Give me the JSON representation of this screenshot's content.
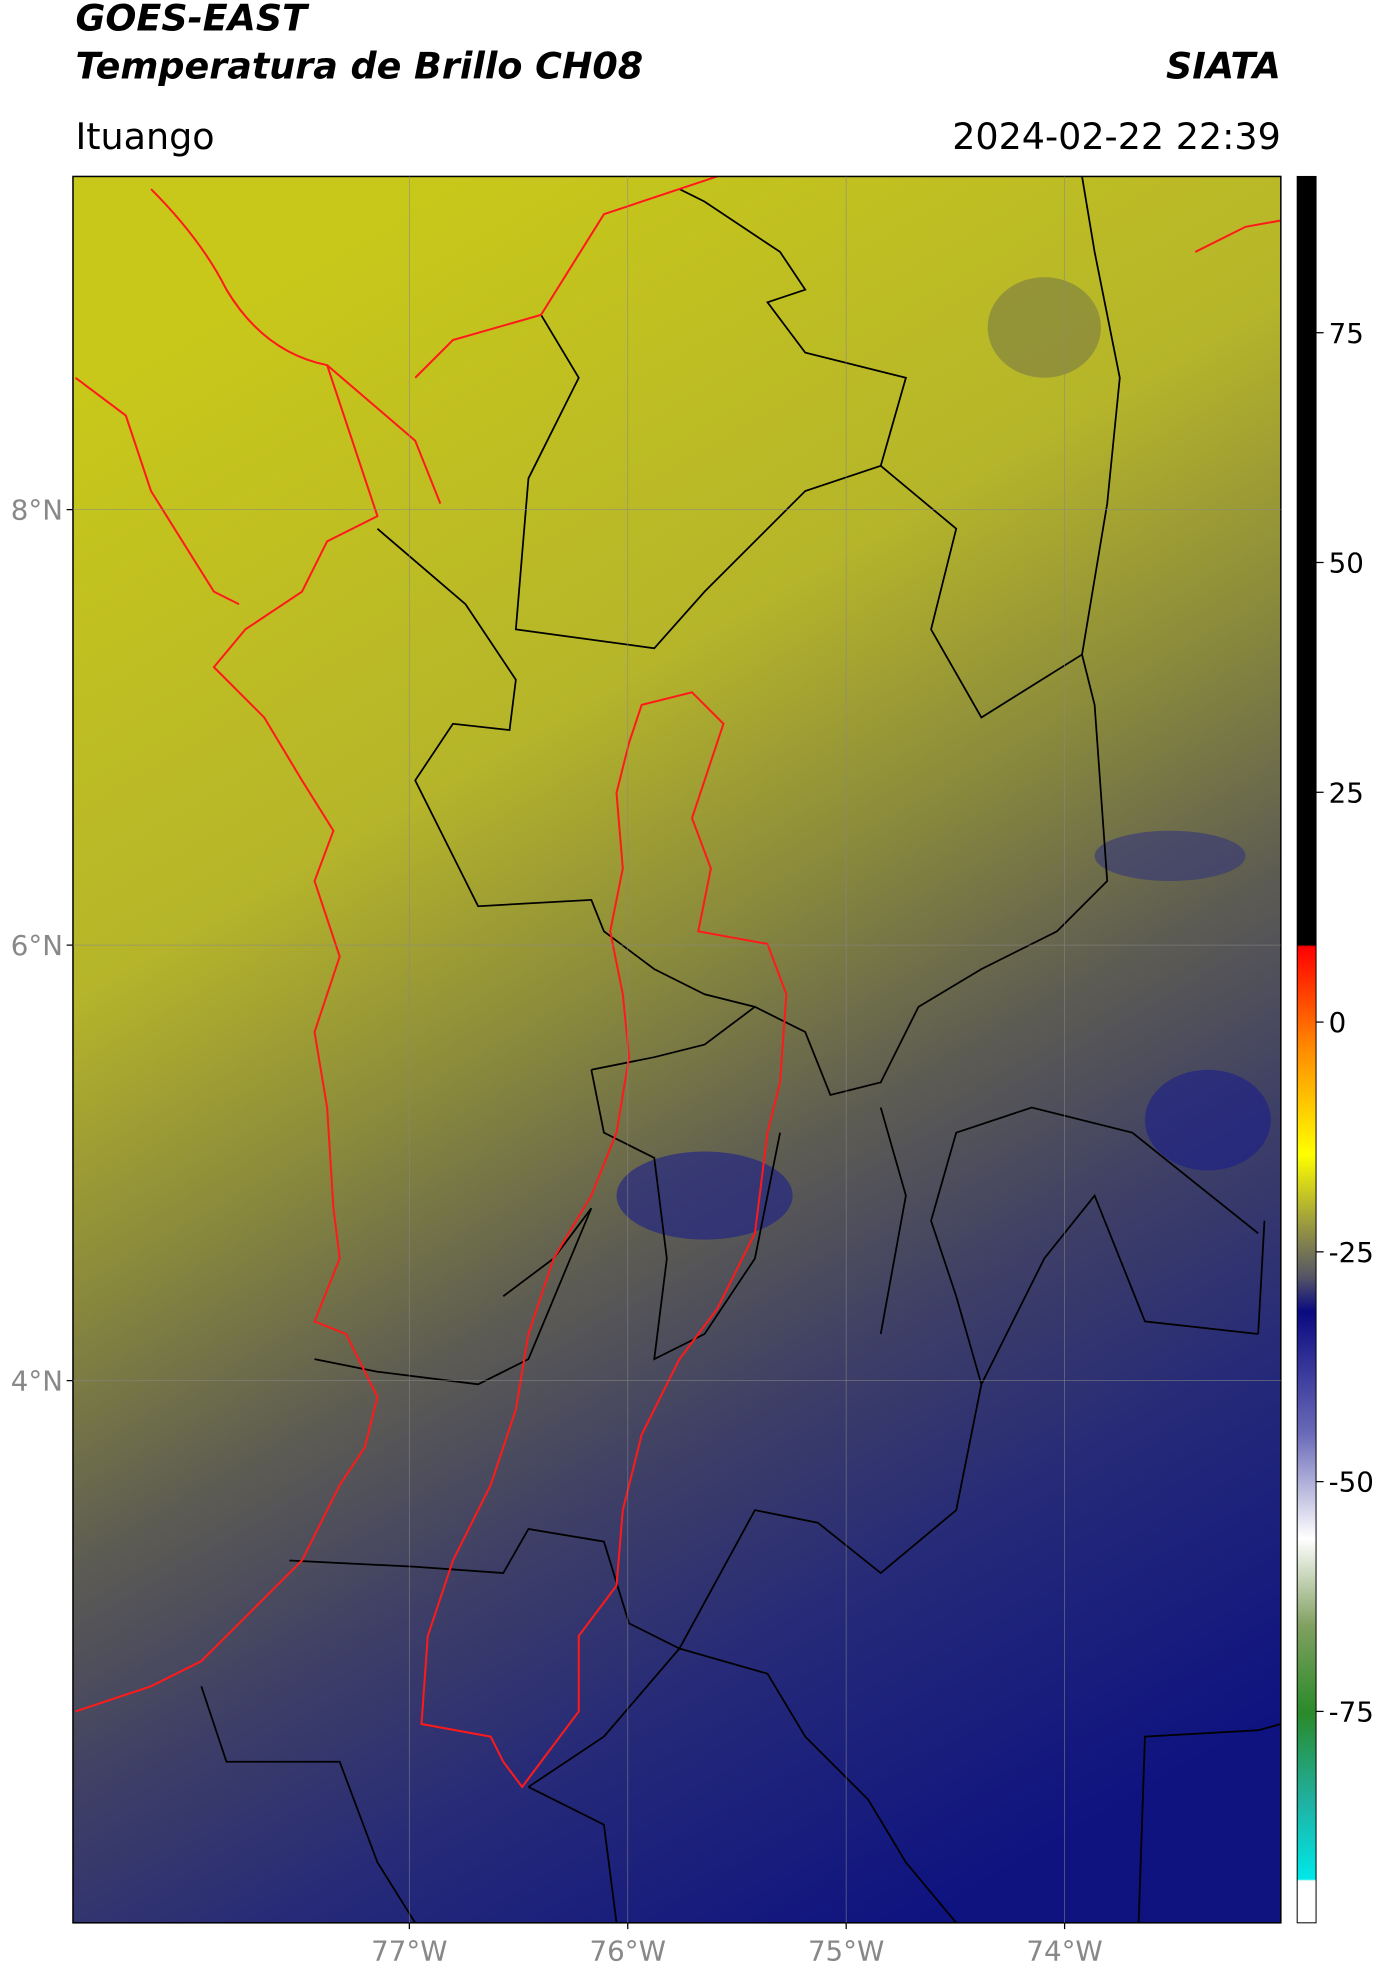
{
  "header": {
    "satellite": "GOES-EAST",
    "product": "Temperatura de Brillo CH08",
    "source": "SIATA",
    "region": "Ituango",
    "datetime": "2024-02-22 22:39"
  },
  "map": {
    "lon_range": [
      -78.54,
      -73.01
    ],
    "lat_range": [
      1.51,
      9.53
    ],
    "lon_ticks": [
      {
        "value": -77,
        "label": "77°W"
      },
      {
        "value": -76,
        "label": "76°W"
      },
      {
        "value": -75,
        "label": "75°W"
      },
      {
        "value": -74,
        "label": "74°W"
      }
    ],
    "lat_ticks": [
      {
        "value": 8,
        "label": "8°N"
      },
      {
        "value": 6,
        "label": "6°N"
      },
      {
        "value": 4,
        "label": "4°N"
      }
    ],
    "grid": true
  },
  "colorbar": {
    "range": [
      -98,
      92
    ],
    "ticks": [
      75,
      50,
      25,
      0,
      -25,
      -50,
      -75
    ]
  }
}
